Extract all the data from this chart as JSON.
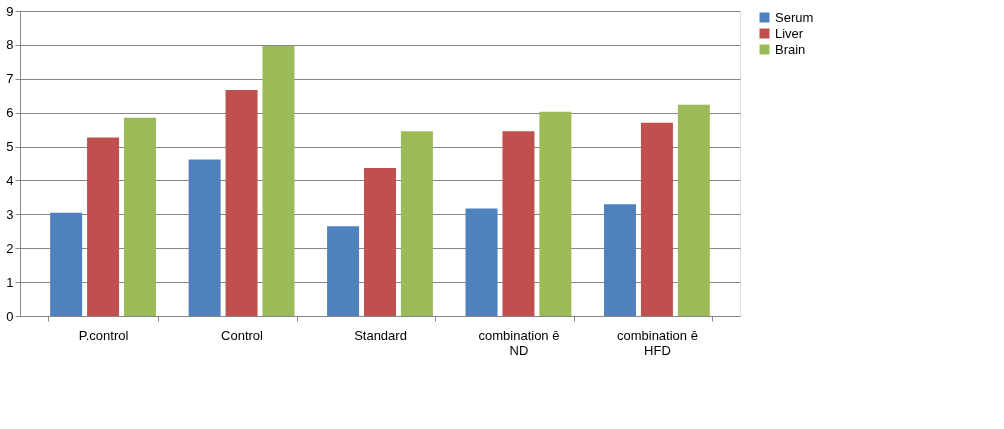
{
  "chart_data": {
    "type": "bar",
    "categories": [
      "P.control",
      "Control",
      "Standard",
      "combination ē ND",
      "combination ē HFD"
    ],
    "series": [
      {
        "name": "Serum",
        "color": "#4f81bd",
        "values": [
          3.05,
          4.62,
          2.65,
          3.17,
          3.3
        ]
      },
      {
        "name": "Liver",
        "color": "#c0504d",
        "values": [
          5.27,
          6.67,
          4.37,
          5.45,
          5.7
        ]
      },
      {
        "name": "Brain",
        "color": "#9bbb59",
        "values": [
          5.85,
          7.97,
          5.45,
          6.03,
          6.23
        ]
      }
    ],
    "ylim": [
      0,
      9
    ],
    "yticks": [
      0,
      1,
      2,
      3,
      4,
      5,
      6,
      7,
      8,
      9
    ],
    "grid": "y",
    "legend": "right"
  }
}
